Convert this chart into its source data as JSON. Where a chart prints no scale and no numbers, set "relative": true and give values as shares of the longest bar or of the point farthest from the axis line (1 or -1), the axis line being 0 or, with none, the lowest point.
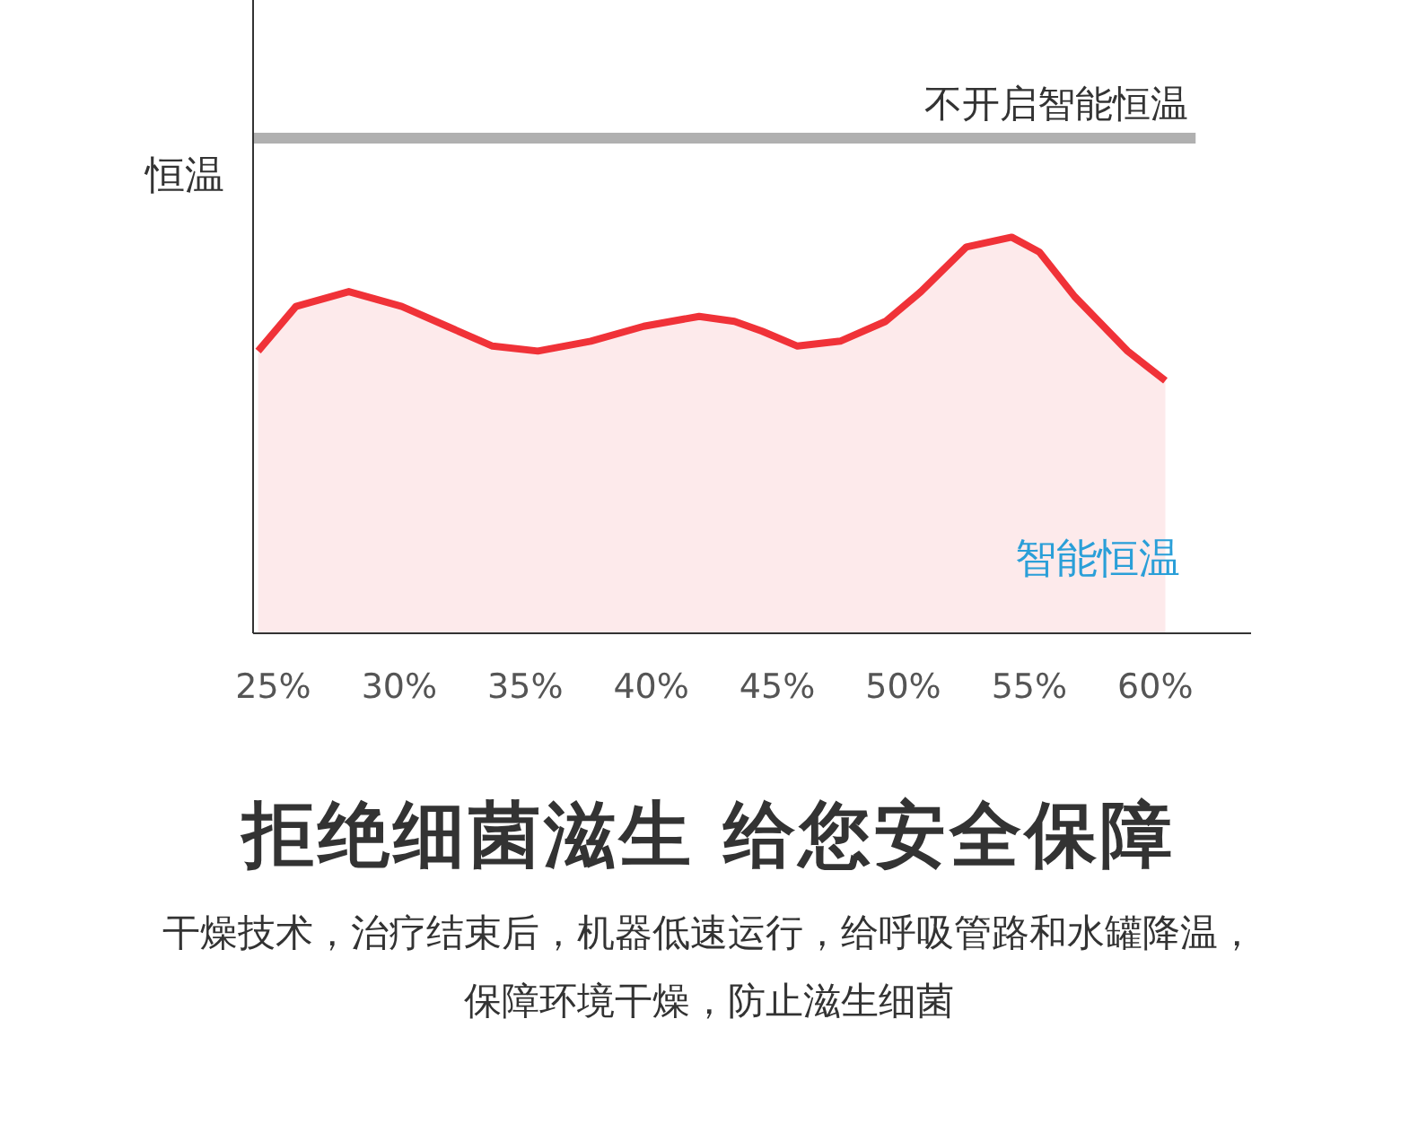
{
  "chart_data": {
    "type": "area",
    "relative": true,
    "title": "拒绝细菌滋生 给您安全保障",
    "subtitle": "干燥技术，治疗结束后，机器低速运行，给呼吸管路和水罐降温，保障环境干燥，防止滋生细菌",
    "ylabel": "恒温",
    "xlim": [
      24.2,
      63.8
    ],
    "xticks": [
      {
        "value": 25,
        "label": "25%"
      },
      {
        "value": 30,
        "label": "30%"
      },
      {
        "value": 35,
        "label": "35%"
      },
      {
        "value": 40,
        "label": "40%"
      },
      {
        "value": 45,
        "label": "45%"
      },
      {
        "value": 50,
        "label": "50%"
      },
      {
        "value": 55,
        "label": "55%"
      },
      {
        "value": 60,
        "label": "60%"
      }
    ],
    "series": [
      {
        "name": "不开启智能恒温",
        "type": "line",
        "color": "#b0b0b0",
        "x": [
          24.2,
          61.6
        ],
        "values": [
          1,
          1
        ]
      },
      {
        "name": "智能恒温",
        "type": "area",
        "color": "#f03238",
        "x": [
          24.4,
          25.9,
          28.0,
          30.1,
          31.9,
          33.7,
          35.5,
          37.6,
          39.7,
          41.9,
          43.3,
          44.4,
          45.8,
          47.5,
          49.3,
          50.7,
          52.5,
          54.3,
          55.4,
          56.8,
          58.9,
          60.4
        ],
        "values": [
          0.57,
          0.66,
          0.69,
          0.66,
          0.62,
          0.58,
          0.57,
          0.59,
          0.62,
          0.64,
          0.63,
          0.61,
          0.58,
          0.59,
          0.63,
          0.69,
          0.78,
          0.8,
          0.77,
          0.68,
          0.57,
          0.51
        ]
      }
    ]
  }
}
